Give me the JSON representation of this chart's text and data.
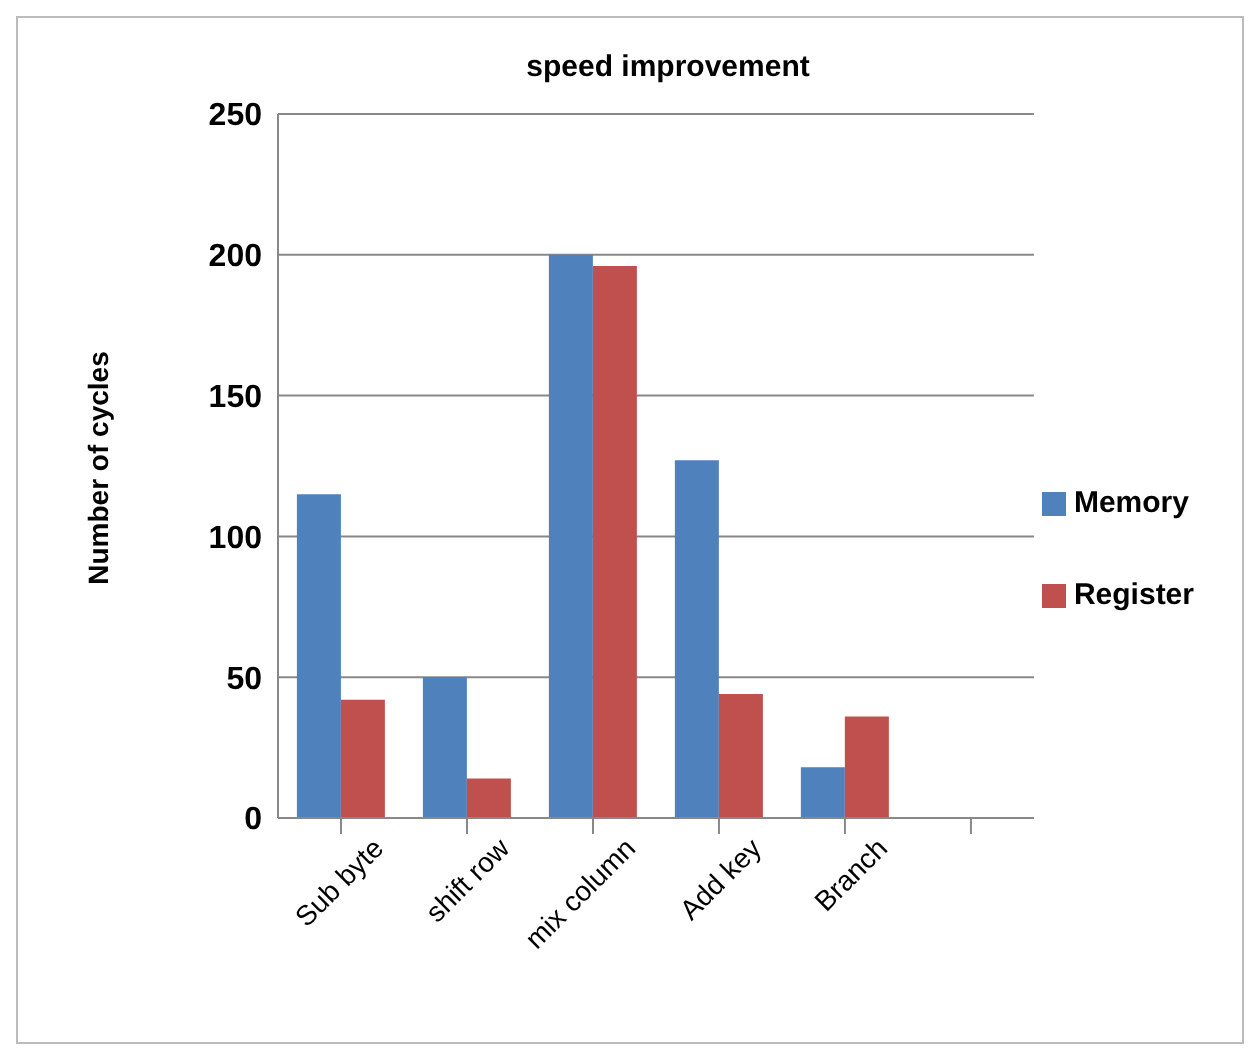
{
  "chart_data": {
    "type": "bar",
    "title": "speed improvement",
    "ylabel": "Number of cycles",
    "categories": [
      "Sub byte",
      "shift row",
      "mix column",
      "Add key",
      "Branch",
      null
    ],
    "series": [
      {
        "name": "Memory",
        "color": "#4f81bd",
        "values": [
          115,
          50,
          200,
          127,
          18,
          null
        ]
      },
      {
        "name": "Register",
        "color": "#c0504d",
        "values": [
          42,
          14,
          196,
          44,
          36,
          null
        ]
      }
    ],
    "ylim": [
      0,
      250
    ],
    "yticks": [
      0,
      50,
      100,
      150,
      200,
      250
    ],
    "grid": "y",
    "legend": "right"
  }
}
